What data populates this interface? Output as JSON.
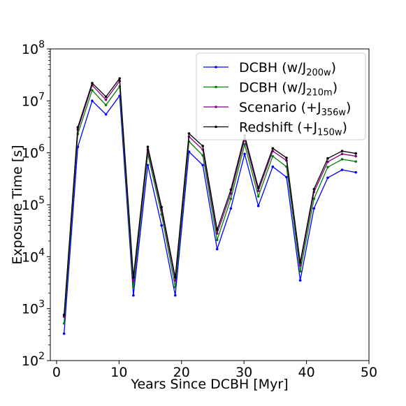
{
  "chart_data": {
    "type": "line",
    "title": "",
    "xlabel": "Years Since DCBH [Myr]",
    "ylabel": "Exposure Time [s]",
    "xlim": [
      -1,
      50
    ],
    "ylim": [
      100,
      100000000
    ],
    "yscale": "log",
    "grid": false,
    "legend_position": "top-right",
    "x_ticks": [
      0,
      10,
      20,
      30,
      40,
      50
    ],
    "x_tick_labels": [
      "0",
      "10",
      "20",
      "30",
      "40",
      "50"
    ],
    "y_ticks": [
      100,
      1000,
      10000,
      100000,
      1000000,
      10000000,
      100000000
    ],
    "y_tick_labels": [
      {
        "base": "10",
        "exp": "2"
      },
      {
        "base": "10",
        "exp": "3"
      },
      {
        "base": "10",
        "exp": "4"
      },
      {
        "base": "10",
        "exp": "5"
      },
      {
        "base": "10",
        "exp": "6"
      },
      {
        "base": "10",
        "exp": "7"
      },
      {
        "base": "10",
        "exp": "8"
      }
    ],
    "x": [
      1.2,
      3.4,
      5.7,
      7.9,
      10.1,
      12.3,
      14.6,
      16.8,
      19.0,
      21.2,
      23.4,
      25.7,
      27.9,
      30.1,
      32.3,
      34.6,
      36.8,
      39.0,
      41.2,
      43.4,
      45.7,
      47.9
    ],
    "series": [
      {
        "name": "DCBH (w/J",
        "name_sub": "200w",
        "name_suffix": ")",
        "color": "#0000ff",
        "values": [
          330,
          1300000,
          10000000,
          5500000,
          12500000,
          1800,
          580000,
          40000,
          1800,
          1050000,
          580000,
          14000,
          85000,
          950000,
          95000,
          540000,
          340000,
          3500,
          85000,
          330000,
          470000,
          420000
        ]
      },
      {
        "name": "DCBH (w/J",
        "name_sub": "210m",
        "name_suffix": ")",
        "color": "#008000",
        "values": [
          520,
          2300000,
          16000000,
          8300000,
          19000000,
          2600,
          950000,
          65000,
          2600,
          1650000,
          890000,
          21000,
          130000,
          1450000,
          145000,
          860000,
          540000,
          5200,
          130000,
          530000,
          750000,
          680000
        ]
      },
      {
        "name": "Scenario (+J",
        "name_sub": "356w",
        "name_suffix": ")",
        "color": "#800080",
        "values": [
          700,
          2800000,
          20000000,
          10500000,
          24000000,
          3500,
          1150000,
          80000,
          3500,
          2050000,
          1150000,
          28000,
          165000,
          1850000,
          185000,
          1080000,
          710000,
          6800,
          175000,
          670000,
          950000,
          860000
        ]
      },
      {
        "name": "Redshift (+J",
        "name_sub": "150w",
        "name_suffix": ")",
        "color": "#000000",
        "values": [
          760,
          3100000,
          22000000,
          12000000,
          27000000,
          4000,
          1300000,
          90000,
          4000,
          2350000,
          1350000,
          33000,
          195000,
          2150000,
          210000,
          1220000,
          800000,
          7700,
          200000,
          780000,
          1080000,
          970000
        ]
      }
    ]
  }
}
